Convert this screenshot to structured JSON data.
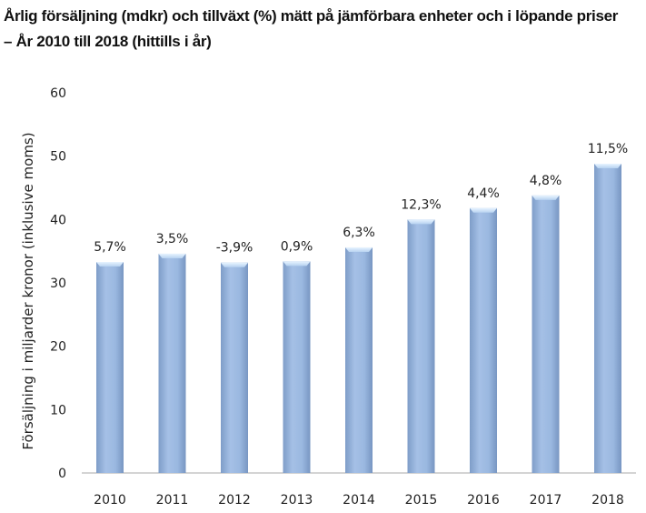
{
  "chart_data": {
    "type": "bar",
    "title_line1": "Årlig försäljning (mdkr) och tillväxt (%) mätt på jämförbara enheter och i löpande priser",
    "title_line2": "– År 2010 till 2018 (hittills i år)",
    "ylabel": "Försäljning i miljarder kronor (inklusive moms)",
    "xlabel": "",
    "ylim": [
      0,
      60
    ],
    "yticks": [
      "0",
      "10",
      "20",
      "30",
      "40",
      "50",
      "60"
    ],
    "categories": [
      "2010",
      "2011",
      "2012",
      "2013",
      "2014",
      "2015",
      "2016",
      "2017",
      "2018"
    ],
    "values": [
      33.3,
      34.6,
      33.2,
      33.4,
      35.6,
      40.0,
      41.8,
      43.8,
      48.8
    ],
    "data_labels": [
      "5,7%",
      "3,5%",
      "-3,9%",
      "0,9%",
      "6,3%",
      "12,3%",
      "4,4%",
      "4,8%",
      "11,5%"
    ],
    "grid": false,
    "legend": "none",
    "bar_color": "#9ab8e0"
  }
}
